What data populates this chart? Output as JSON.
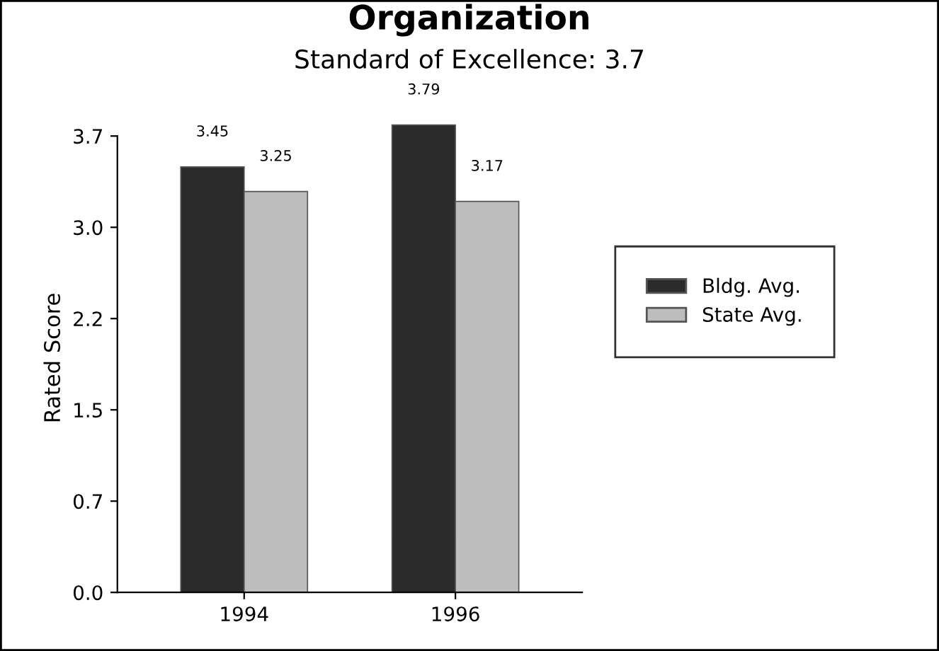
{
  "chart_data": {
    "type": "bar",
    "title": "Organization",
    "subtitle": "Standard of Excellence: 3.7",
    "ylabel": "Rated Score",
    "categories": [
      "1994",
      "1996"
    ],
    "series": [
      {
        "name": "Bldg. Avg.",
        "color": "#2b2b2b",
        "values": [
          3.45,
          3.79
        ]
      },
      {
        "name": "State Avg.",
        "color": "#bdbdbd",
        "values": [
          3.25,
          3.17
        ]
      }
    ],
    "ylim": [
      0,
      3.8
    ],
    "yticks": [
      {
        "value": 0,
        "label": "0.0"
      },
      {
        "value": 0.74,
        "label": "0.7"
      },
      {
        "value": 1.48,
        "label": "1.5"
      },
      {
        "value": 2.22,
        "label": "2.2"
      },
      {
        "value": 2.96,
        "label": "3.0"
      },
      {
        "value": 3.7,
        "label": "3.7"
      }
    ],
    "data_labels": true,
    "legend": "right",
    "grid": false
  }
}
